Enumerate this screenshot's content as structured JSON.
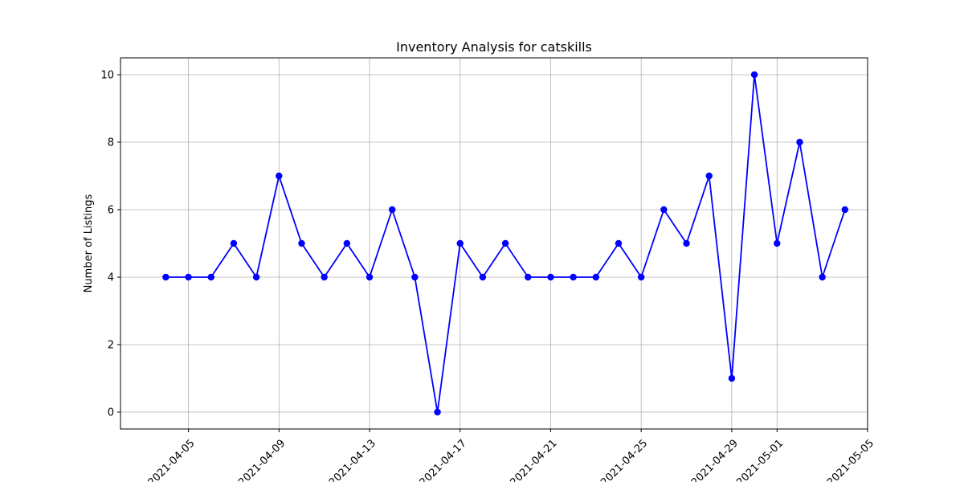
{
  "chart_data": {
    "type": "line",
    "title": "Inventory Analysis for catskills",
    "xlabel": "",
    "ylabel": "Number of Listings",
    "xlim": [
      "2021-04-02",
      "2021-05-05"
    ],
    "ylim": [
      -0.5,
      10.5
    ],
    "grid": true,
    "x_ticks": [
      "2021-04-05",
      "2021-04-09",
      "2021-04-13",
      "2021-04-17",
      "2021-04-21",
      "2021-04-25",
      "2021-04-29",
      "2021-05-01",
      "2021-05-05"
    ],
    "y_ticks": [
      0,
      2,
      4,
      6,
      8,
      10
    ],
    "x": [
      "2021-04-04",
      "2021-04-05",
      "2021-04-06",
      "2021-04-07",
      "2021-04-08",
      "2021-04-09",
      "2021-04-10",
      "2021-04-11",
      "2021-04-12",
      "2021-04-13",
      "2021-04-14",
      "2021-04-15",
      "2021-04-16",
      "2021-04-17",
      "2021-04-18",
      "2021-04-19",
      "2021-04-20",
      "2021-04-21",
      "2021-04-22",
      "2021-04-23",
      "2021-04-24",
      "2021-04-25",
      "2021-04-26",
      "2021-04-27",
      "2021-04-28",
      "2021-04-29",
      "2021-04-30",
      "2021-05-01",
      "2021-05-02",
      "2021-05-03",
      "2021-05-04"
    ],
    "series": [
      {
        "color": "#0000ff",
        "values": [
          4,
          4,
          4,
          5,
          4,
          7,
          5,
          4,
          5,
          4,
          6,
          4,
          0,
          5,
          4,
          5,
          4,
          4,
          4,
          4,
          5,
          4,
          6,
          5,
          7,
          1,
          10,
          5,
          8,
          4,
          6
        ]
      }
    ]
  }
}
